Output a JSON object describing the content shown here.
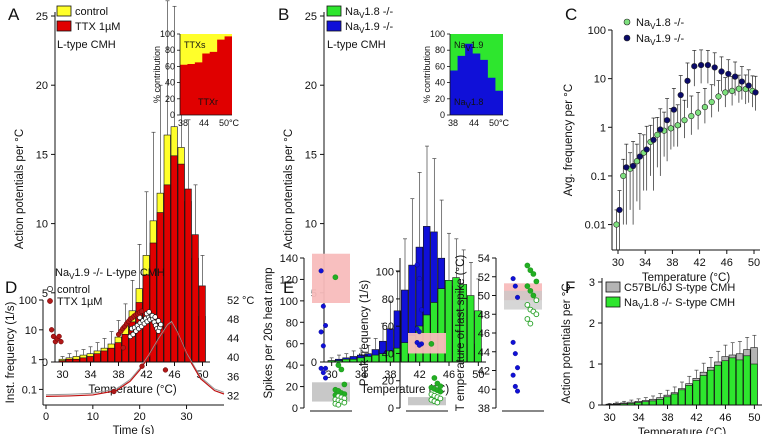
{
  "colors": {
    "control": "#ffff2a",
    "ttx": "#e00000",
    "nav18ko": "#2ee62e",
    "nav19ko": "#1010d8",
    "c57": "#b4b4b4",
    "navy": "#0a0a6a",
    "lightgreen": "#7ee07e",
    "pinkband": "#f8bcbc",
    "greyband": "#c8c8c8"
  },
  "panels": {
    "A": "A",
    "B": "B",
    "C": "C",
    "D": "D",
    "E": "E",
    "F": "F"
  },
  "labels": {
    "temp": "Temperature (°C)",
    "ap_per_c": "Action potentials per °C",
    "avg_freq": "Avg. frequency per °C",
    "inst_freq": "Inst. frequency (1/s)",
    "time": "Time (s)",
    "spikes_ramp": "Spikes per 20s heat ramp",
    "peak_freq": "Peak frequency (1/s)",
    "t_last": "T emperature of last spike (°C)",
    "pct": "% contribution",
    "lt_cmh": "L-type CMH",
    "d_title": "NaV1.9 -/- L-type CMH",
    "deg_c": "°C"
  },
  "chart_data": [
    {
      "panel": "A",
      "type": "bar",
      "title": "L-type CMH",
      "xlabel": "Temperature (°C)",
      "ylabel": "Action potentials per °C",
      "ylim": [
        0,
        25
      ],
      "x": [
        30,
        31,
        32,
        33,
        34,
        35,
        36,
        37,
        38,
        39,
        40,
        41,
        42,
        43,
        44,
        45,
        46,
        47,
        48,
        49,
        50
      ],
      "xticks": [
        "30",
        "34",
        "38",
        "42",
        "46",
        "50"
      ],
      "yticks": [
        "0",
        "5",
        "10",
        "15",
        "20",
        "25"
      ],
      "series": [
        {
          "name": "control",
          "values": [
            0.2,
            0.3,
            0.4,
            0.5,
            0.6,
            0.8,
            1.0,
            1.3,
            1.8,
            2.6,
            3.7,
            5.3,
            7.7,
            10.2,
            12.2,
            16.4,
            17.0,
            15.5,
            11.6,
            7.5,
            3.3
          ]
        },
        {
          "name": "TTX 1µM",
          "values": [
            0.1,
            0.2,
            0.2,
            0.3,
            0.4,
            0.6,
            0.8,
            1.0,
            1.4,
            2.0,
            2.9,
            4.3,
            6.3,
            8.6,
            10.8,
            12.8,
            14.9,
            14.3,
            12.5,
            9.2,
            5.5
          ]
        }
      ],
      "error": [
        0.2,
        0.3,
        0.4,
        0.4,
        0.5,
        0.6,
        0.7,
        0.9,
        1.2,
        1.6,
        2.2,
        3.2,
        4.6,
        6.4,
        7.8,
        9.7,
        8.7,
        7.0,
        5.0,
        3.6,
        2.2
      ],
      "inset": {
        "ylabel": "% contribution",
        "yticks": [
          "0",
          "20",
          "40",
          "60",
          "80",
          "100"
        ],
        "xticks": [
          "38",
          "44",
          "50°C"
        ],
        "labels": [
          "TTXs",
          "TTXr"
        ],
        "x": [
          38,
          40,
          42,
          44,
          46,
          48,
          50
        ],
        "ttxr_pct": [
          62,
          63,
          65,
          76,
          78,
          93,
          97
        ]
      }
    },
    {
      "panel": "B",
      "type": "bar",
      "title": "L-type CMH",
      "xlabel": "Temperature (°C)",
      "ylabel": "Action potentials per °C",
      "ylim": [
        0,
        25
      ],
      "x": [
        30,
        31,
        32,
        33,
        34,
        35,
        36,
        37,
        38,
        39,
        40,
        41,
        42,
        43,
        44,
        45,
        46,
        47,
        48,
        49,
        50
      ],
      "xticks": [
        "30",
        "34",
        "38",
        "42",
        "46",
        "50"
      ],
      "yticks": [
        "0",
        "5",
        "10",
        "15",
        "20",
        "25"
      ],
      "series": [
        {
          "name": "NaV1.8 -/-",
          "values": [
            0.1,
            0.2,
            0.3,
            0.4,
            0.5,
            0.6,
            0.9,
            1.5,
            2.4,
            3.7,
            5.2,
            7.0,
            8.3,
            9.8,
            9.4,
            7.5,
            5.5,
            3.5,
            2.2,
            1.3,
            0.8
          ]
        },
        {
          "name": "NaV1.9 -/-",
          "values": [
            0.1,
            0.1,
            0.2,
            0.2,
            0.3,
            0.4,
            0.5,
            0.6,
            0.8,
            1.0,
            1.4,
            1.9,
            2.6,
            3.4,
            4.3,
            5.3,
            5.9,
            6.1,
            5.6,
            4.8,
            3.7
          ]
        }
      ],
      "error": [
        0.2,
        0.3,
        0.3,
        0.4,
        0.5,
        0.6,
        0.8,
        1.3,
        2.0,
        2.9,
        3.7,
        4.8,
        5.4,
        5.8,
        5.3,
        4.2,
        3.4,
        2.8,
        2.5,
        2.4,
        2.3
      ],
      "inset": {
        "ylabel": "% contribution",
        "yticks": [
          "0",
          "20",
          "40",
          "60",
          "80",
          "100"
        ],
        "xticks": [
          "38",
          "44",
          "50°C"
        ],
        "labels": [
          "NaV1.9",
          "NaV1.8"
        ],
        "x": [
          38,
          40,
          42,
          44,
          46,
          48,
          50
        ],
        "nav18_pct": [
          55,
          73,
          88,
          76,
          68,
          46,
          30
        ]
      }
    },
    {
      "panel": "C",
      "type": "scatter",
      "xlabel": "Temperature (°C)",
      "ylabel": "Avg. frequency per °C",
      "xlim": [
        29,
        50
      ],
      "ylim": [
        0.001,
        100
      ],
      "yscale": "log",
      "xticks": [
        "30",
        "34",
        "38",
        "42",
        "46",
        "50"
      ],
      "yticks": [
        "0.01",
        "0.1",
        "1",
        "10",
        "100"
      ],
      "x": [
        30,
        31,
        32,
        33,
        34,
        35,
        36,
        37,
        38,
        39,
        40,
        41,
        42,
        43,
        44,
        45,
        46,
        47,
        48,
        49,
        50
      ],
      "series": [
        {
          "name": "NaV1.8 -/-",
          "values": [
            0.01,
            0.1,
            0.14,
            0.2,
            0.3,
            0.5,
            0.7,
            0.85,
            0.95,
            1.1,
            1.4,
            1.7,
            2.0,
            2.6,
            3.3,
            4.3,
            5.2,
            5.6,
            6.2,
            6.1,
            5.6
          ],
          "err_lo": [
            0.009,
            0.09,
            0.12,
            0.17,
            0.25,
            0.4,
            0.55,
            0.6,
            0.6,
            0.7,
            0.8,
            1.0,
            1.1,
            1.4,
            1.7,
            2.2,
            2.6,
            2.8,
            3.0,
            3.1,
            3.0
          ],
          "err_hi": [
            0.01,
            0.12,
            0.16,
            0.25,
            0.4,
            0.6,
            0.9,
            1.2,
            1.5,
            1.8,
            2.2,
            2.7,
            3.2,
            3.7,
            4.2,
            4.8,
            5.3,
            5.5,
            5.6,
            5.8,
            5.8
          ]
        },
        {
          "name": "NaV1.9 -/-",
          "values": [
            0.02,
            0.15,
            0.16,
            0.25,
            0.35,
            0.55,
            0.9,
            1.4,
            2.3,
            4.6,
            9.0,
            18,
            19,
            19,
            17,
            14,
            12.5,
            11,
            8.7,
            7.2,
            5.2
          ],
          "err_lo": [
            0.019,
            0.14,
            0.15,
            0.23,
            0.3,
            0.5,
            0.8,
            1.2,
            1.9,
            3.6,
            6.5,
            11,
            11,
            11,
            10,
            8.5,
            7.5,
            6.5,
            5.0,
            4.0,
            3.0
          ],
          "err_hi": [
            0.03,
            0.3,
            0.35,
            0.5,
            0.7,
            1.0,
            1.5,
            2.5,
            4.0,
            7.0,
            12,
            20,
            20,
            19,
            17,
            14,
            12,
            11,
            9,
            8,
            6
          ]
        }
      ]
    },
    {
      "panel": "D",
      "type": "scatter",
      "title": "NaV1.9 -/- L-type CMH",
      "xlabel": "Time (s)",
      "ylabel": "Inst. frequency (1/s)",
      "xlim": [
        0,
        38
      ],
      "ylim": [
        0.03,
        100
      ],
      "yscale": "log",
      "xticks": [
        "0",
        "10",
        "20",
        "30"
      ],
      "yticks": [
        "0.1",
        "1",
        "10",
        "100"
      ],
      "temp_axis": {
        "label": "°C",
        "ticks": [
          "32",
          "36",
          "40",
          "44",
          "48",
          "52"
        ],
        "range": [
          30,
          53
        ]
      },
      "series": [
        {
          "name": "control",
          "points": [
            [
              18.0,
              6
            ],
            [
              18.3,
              11
            ],
            [
              18.6,
              7
            ],
            [
              18.9,
              12
            ],
            [
              19.2,
              9
            ],
            [
              19.5,
              14
            ],
            [
              19.8,
              11
            ],
            [
              20.1,
              17
            ],
            [
              20.4,
              13
            ],
            [
              20.7,
              20
            ],
            [
              21.0,
              16
            ],
            [
              21.3,
              24
            ],
            [
              21.6,
              19
            ],
            [
              21.9,
              28
            ],
            [
              22.2,
              22
            ],
            [
              22.5,
              30
            ],
            [
              22.8,
              24
            ],
            [
              23.1,
              18
            ],
            [
              23.4,
              14
            ],
            [
              23.7,
              11
            ],
            [
              24.0,
              9
            ],
            [
              24.3,
              12
            ],
            [
              20.0,
              26
            ],
            [
              21.5,
              35
            ],
            [
              22.0,
              40
            ],
            [
              22.7,
              30
            ],
            [
              23.3,
              27
            ],
            [
              24.0,
              20
            ],
            [
              24.5,
              15
            ]
          ]
        },
        {
          "name": "TTX 1µM",
          "points": [
            [
              1.2,
              10
            ],
            [
              1.6,
              6
            ],
            [
              2.0,
              4
            ],
            [
              2.4,
              5
            ],
            [
              2.8,
              6
            ],
            [
              3.2,
              4
            ],
            [
              15.5,
              7
            ],
            [
              16.0,
              9
            ],
            [
              16.4,
              11
            ],
            [
              16.8,
              13
            ],
            [
              17.2,
              16
            ],
            [
              17.6,
              19
            ],
            [
              18.0,
              23
            ],
            [
              18.4,
              25
            ],
            [
              18.8,
              29
            ],
            [
              19.2,
              32
            ],
            [
              19.6,
              34
            ],
            [
              20.0,
              38
            ],
            [
              20.4,
              42
            ],
            [
              16.5,
              2.5
            ],
            [
              20.5,
              0.6
            ],
            [
              25.5,
              0.45
            ],
            [
              14.5,
              0.085
            ]
          ]
        }
      ],
      "temp_trace": {
        "time": [
          0,
          5,
          10,
          15,
          18,
          20,
          22,
          24,
          26,
          26.8,
          28,
          30,
          33,
          36,
          38
        ],
        "temp": [
          31.8,
          31.9,
          32.1,
          33.0,
          35.0,
          37.3,
          40.2,
          43.5,
          46.5,
          47.1,
          45.0,
          40.5,
          35.5,
          33.0,
          32.3
        ]
      }
    },
    {
      "panel": "E",
      "type": "scatter",
      "subplots": [
        {
          "ylabel": "Spikes per 20s heat ramp",
          "ylim": [
            0,
            140
          ],
          "yticks": [
            "0",
            "20",
            "40",
            "60",
            "80",
            "100",
            "120",
            "140"
          ],
          "band_control": [
            98,
            144
          ],
          "band_grey": [
            6,
            24
          ],
          "nav19ko": [
            128,
            95,
            77,
            71,
            58,
            37,
            37,
            33,
            28
          ],
          "nav18ko": [
            122,
            40,
            36,
            22,
            17,
            16,
            14,
            13,
            12,
            11,
            10,
            9,
            8,
            7,
            6,
            5,
            4,
            3
          ]
        },
        {
          "ylabel": "Peak frequency (1/s)",
          "ylim": [
            0,
            110
          ],
          "yticks": [
            "0",
            "20",
            "40",
            "60",
            "80",
            "100"
          ],
          "band_control": [
            40,
            55
          ],
          "band_grey": [
            2,
            8
          ],
          "nav19ko": [
            105,
            95,
            72,
            58,
            56,
            47,
            48,
            46
          ],
          "nav18ko": [
            47,
            22,
            18,
            16,
            15,
            14,
            13,
            12,
            10,
            9,
            8,
            7,
            6,
            5,
            4
          ]
        },
        {
          "ylabel": "T emperature of last spike (°C)",
          "ylim": [
            38,
            54
          ],
          "yticks": [
            "38",
            "40",
            "42",
            "44",
            "46",
            "48",
            "50",
            "52",
            "54"
          ],
          "band_control": [
            49.5,
            51.3
          ],
          "band_grey": [
            48.5,
            50.5
          ],
          "nav19ko": [
            51.8,
            51.0,
            49.8,
            45.0,
            43.8,
            42.3,
            41.5,
            40.3,
            39.8
          ],
          "nav18ko": [
            53.2,
            52.7,
            52.3,
            51.5,
            51.0,
            50.5,
            50.0,
            49.5,
            49.0,
            48.5,
            48.3,
            48.0,
            47.5,
            47.0
          ]
        }
      ]
    },
    {
      "panel": "F",
      "type": "bar",
      "xlabel": "Temperature (°C)",
      "ylabel": "Action potentials per °C",
      "ylim": [
        0,
        3
      ],
      "x": [
        30,
        31,
        32,
        33,
        34,
        35,
        36,
        37,
        38,
        39,
        40,
        41,
        42,
        43,
        44,
        45,
        46,
        47,
        48,
        49,
        50
      ],
      "xticks": [
        "30",
        "34",
        "38",
        "42",
        "46",
        "50"
      ],
      "yticks": [
        "0",
        "1",
        "2",
        "3"
      ],
      "series": [
        {
          "name": "C57BL/6J S-type CMH",
          "values": [
            0.02,
            0.04,
            0.05,
            0.07,
            0.09,
            0.11,
            0.14,
            0.18,
            0.24,
            0.3,
            0.4,
            0.52,
            0.65,
            0.8,
            0.92,
            1.05,
            1.18,
            1.22,
            1.25,
            1.35,
            1.4
          ]
        },
        {
          "name": "NaV1.8 -/- S-type CMH",
          "values": [
            0.01,
            0.02,
            0.03,
            0.04,
            0.06,
            0.08,
            0.1,
            0.14,
            0.2,
            0.27,
            0.37,
            0.48,
            0.6,
            0.72,
            0.85,
            0.97,
            1.08,
            1.15,
            1.1,
            1.2,
            1.0
          ]
        }
      ],
      "error": [
        0.02,
        0.03,
        0.04,
        0.05,
        0.06,
        0.07,
        0.08,
        0.1,
        0.12,
        0.14,
        0.16,
        0.18,
        0.2,
        0.22,
        0.24,
        0.26,
        0.28,
        0.3,
        0.3,
        0.3,
        0.3
      ]
    }
  ]
}
